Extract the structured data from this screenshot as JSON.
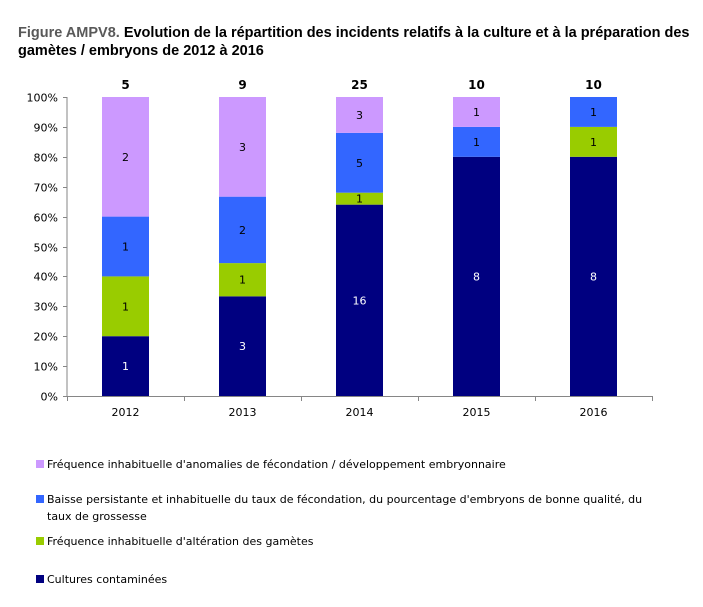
{
  "title": {
    "prefix": "Figure AMPV8.",
    "text": " Evolution de la répartition des incidents relatifs à la culture et à la préparation des gamètes / embryons de 2012 à 2016"
  },
  "chart_data": {
    "type": "bar",
    "stacked": "percent",
    "title": "Evolution de la répartition des incidents relatifs à la culture et à la préparation des gamètes / embryons de 2012 à 2016",
    "categories": [
      "2012",
      "2013",
      "2014",
      "2015",
      "2016"
    ],
    "totals": [
      5,
      9,
      25,
      10,
      10
    ],
    "series": [
      {
        "name": "Cultures contaminées",
        "color": "#000080",
        "label_color": "#ffffff",
        "values": [
          1,
          3,
          16,
          8,
          8
        ]
      },
      {
        "name": "Fréquence inhabituelle d'altération des gamètes",
        "color": "#99cc00",
        "label_color": "#000000",
        "values": [
          1,
          1,
          1,
          0,
          1
        ]
      },
      {
        "name": "Baisse persistante et inhabituelle du taux de fécondation, du pourcentage d'embryons de bonne qualité, du taux de grossesse",
        "color": "#3366ff",
        "label_color": "#000000",
        "values": [
          1,
          2,
          5,
          1,
          1
        ]
      },
      {
        "name": "Fréquence inhabituelle d'anomalies de fécondation / développement embryonnaire",
        "color": "#cc99ff",
        "label_color": "#000000",
        "values": [
          2,
          3,
          3,
          1,
          0
        ]
      }
    ],
    "yticks": [
      "0%",
      "10%",
      "20%",
      "30%",
      "40%",
      "50%",
      "60%",
      "70%",
      "80%",
      "90%",
      "100%"
    ],
    "ylim": [
      0,
      100
    ],
    "xlabel": "",
    "ylabel": "",
    "grid": false,
    "legend_position": "bottom"
  },
  "legend": [
    {
      "label": "Fréquence inhabituelle d'anomalies de fécondation / développement embryonnaire",
      "color": "#cc99ff"
    },
    {
      "label": "Baisse persistante et inhabituelle du taux de fécondation, du pourcentage d'embryons de bonne qualité, du taux de grossesse",
      "color": "#3366ff"
    },
    {
      "label": "Fréquence inhabituelle d'altération des gamètes",
      "color": "#99cc00"
    },
    {
      "label": "Cultures contaminées",
      "color": "#000080"
    }
  ]
}
